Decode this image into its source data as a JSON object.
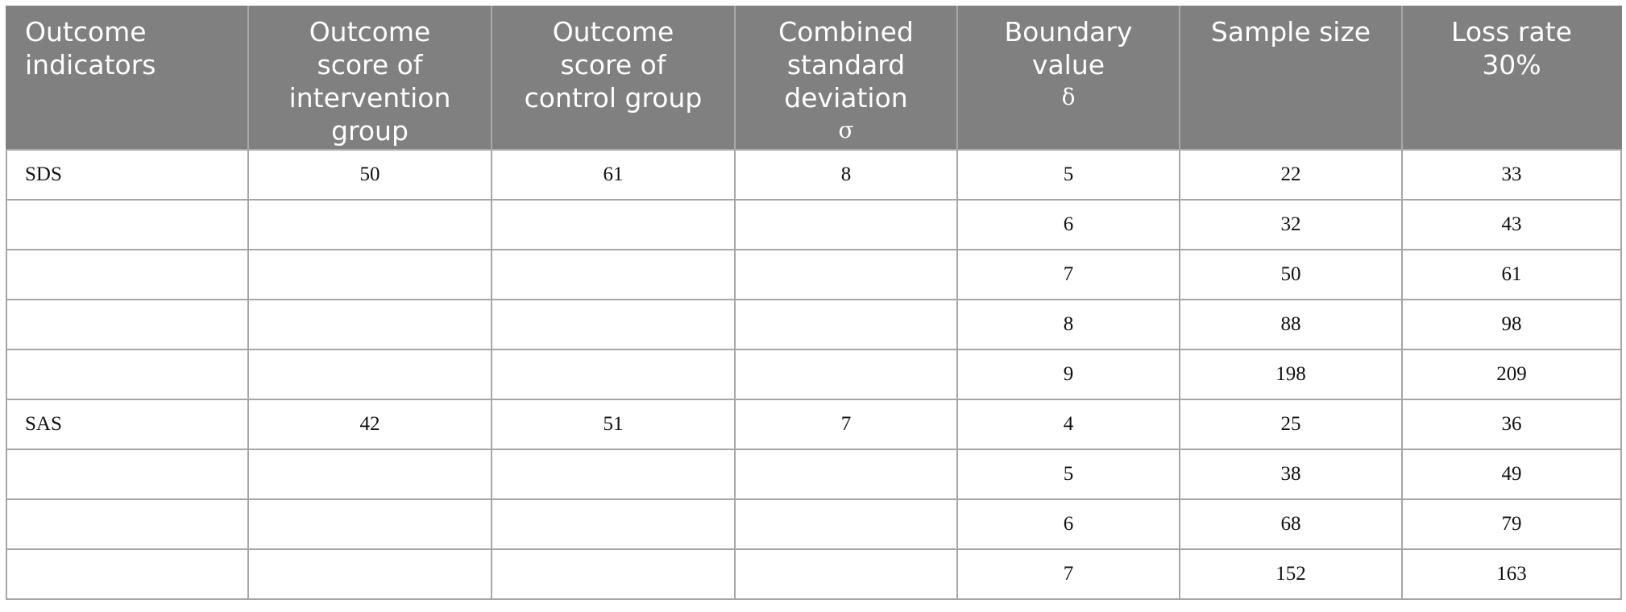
{
  "table": {
    "headers": [
      {
        "lines": [
          "Outcome",
          "indicators"
        ],
        "symbol": ""
      },
      {
        "lines": [
          "Outcome",
          "score of",
          "intervention",
          "group"
        ],
        "symbol": ""
      },
      {
        "lines": [
          "Outcome",
          "score of",
          "control group"
        ],
        "symbol": ""
      },
      {
        "lines": [
          "Combined",
          "standard",
          "deviation"
        ],
        "symbol": "σ"
      },
      {
        "lines": [
          "Boundary",
          "value"
        ],
        "symbol": "δ"
      },
      {
        "lines": [
          "Sample size"
        ],
        "symbol": ""
      },
      {
        "lines": [
          "Loss rate",
          "30%"
        ],
        "symbol": ""
      }
    ],
    "rows": [
      [
        "SDS",
        "50",
        "61",
        "8",
        "5",
        "22",
        "33"
      ],
      [
        "",
        "",
        "",
        "",
        "6",
        "32",
        "43"
      ],
      [
        "",
        "",
        "",
        "",
        "7",
        "50",
        "61"
      ],
      [
        "",
        "",
        "",
        "",
        "8",
        "88",
        "98"
      ],
      [
        "",
        "",
        "",
        "",
        "9",
        "198",
        "209"
      ],
      [
        "SAS",
        "42",
        "51",
        "7",
        "4",
        "25",
        "36"
      ],
      [
        "",
        "",
        "",
        "",
        "5",
        "38",
        "49"
      ],
      [
        "",
        "",
        "",
        "",
        "6",
        "68",
        "79"
      ],
      [
        "",
        "",
        "",
        "",
        "7",
        "152",
        "163"
      ]
    ]
  },
  "colors": {
    "header_background": "#808080",
    "header_text": "#ffffff",
    "grid_lines": "#a6a6a6"
  }
}
